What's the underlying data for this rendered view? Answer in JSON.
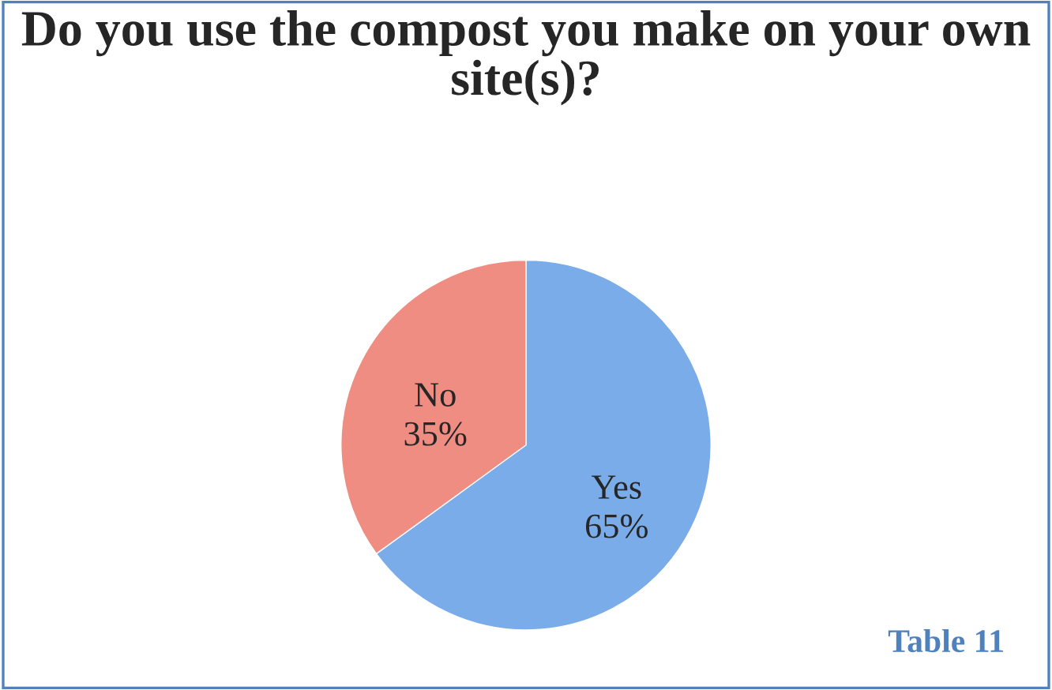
{
  "chart_data": {
    "type": "pie",
    "title": "Do you use the compost you make on your own site(s)?",
    "categories": [
      "Yes",
      "No"
    ],
    "values": [
      65,
      35
    ],
    "colors": [
      "#7aacea",
      "#ef8d83"
    ],
    "value_labels": [
      "65%",
      "35%"
    ],
    "annotations": [
      "Table 11"
    ],
    "legend": false
  }
}
